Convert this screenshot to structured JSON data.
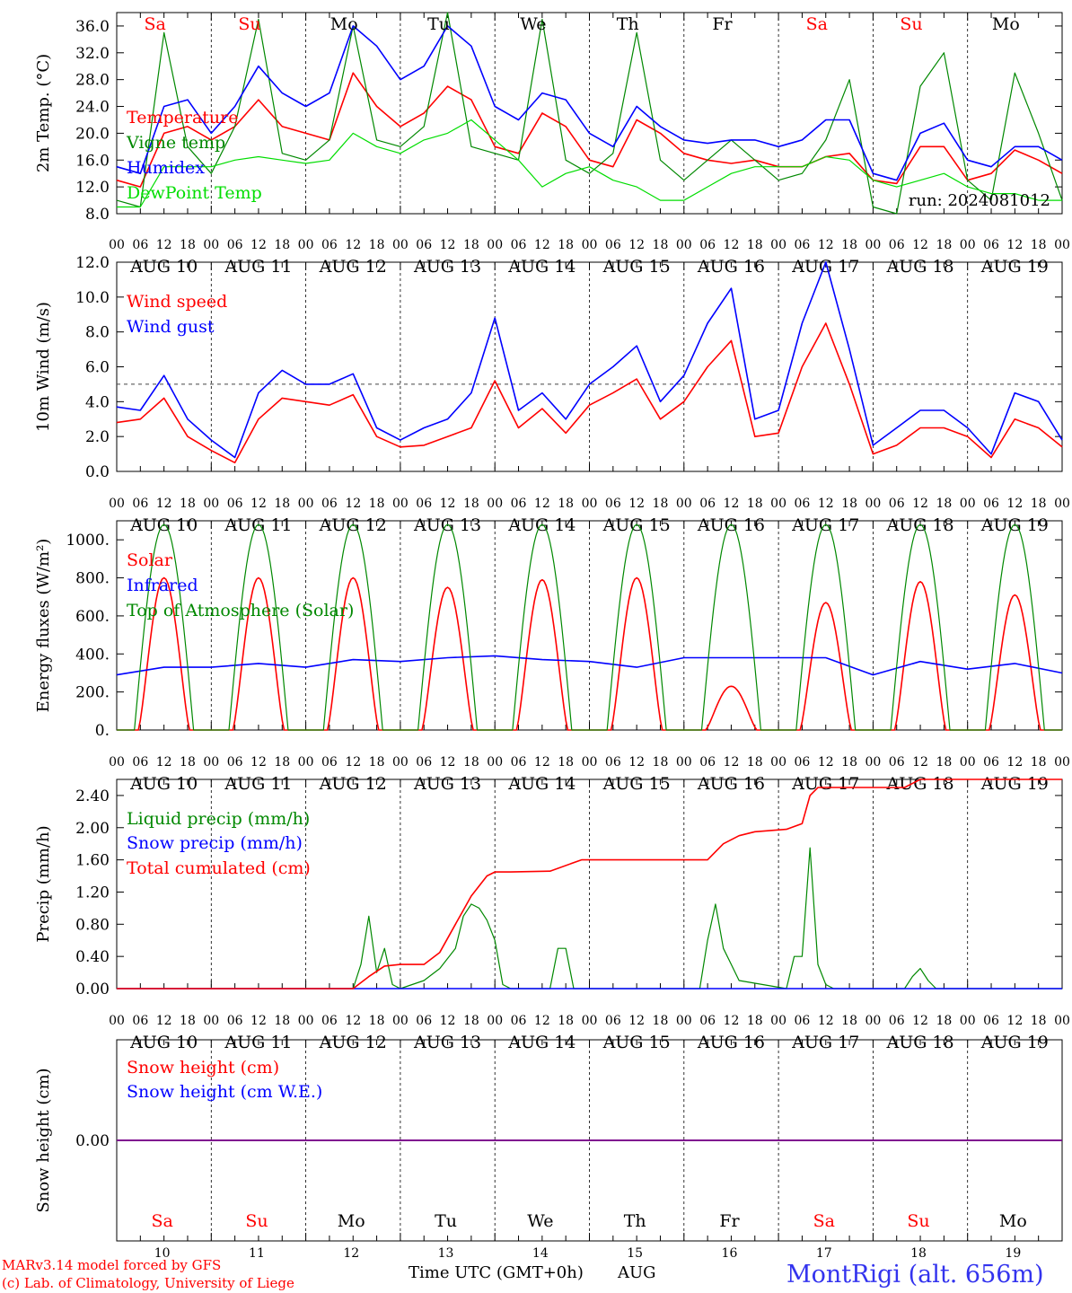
{
  "colors": {
    "red": "#ff0000",
    "blue": "#0000ff",
    "green": "#008800",
    "lightgreen": "#00dd00",
    "purple": "#800080",
    "black": "#000000",
    "station_blue": "#3333ee"
  },
  "days": [
    {
      "abbr": "Sa",
      "date": "AUG 10",
      "num": "10",
      "weekend": true
    },
    {
      "abbr": "Su",
      "date": "AUG 11",
      "num": "11",
      "weekend": true
    },
    {
      "abbr": "Mo",
      "date": "AUG 12",
      "num": "12",
      "weekend": false
    },
    {
      "abbr": "Tu",
      "date": "AUG 13",
      "num": "13",
      "weekend": false
    },
    {
      "abbr": "We",
      "date": "AUG 14",
      "num": "14",
      "weekend": false
    },
    {
      "abbr": "Th",
      "date": "AUG 15",
      "num": "15",
      "weekend": false
    },
    {
      "abbr": "Fr",
      "date": "AUG 16",
      "num": "16",
      "weekend": false
    },
    {
      "abbr": "Sa",
      "date": "AUG 17",
      "num": "17",
      "weekend": true
    },
    {
      "abbr": "Su",
      "date": "AUG 18",
      "num": "18",
      "weekend": true
    },
    {
      "abbr": "Mo",
      "date": "AUG 19",
      "num": "19",
      "weekend": false
    }
  ],
  "hour_labels": [
    "00",
    "06",
    "12",
    "18"
  ],
  "hour_label_end": "00",
  "footer": {
    "model": "MARv3.14 model forced by GFS",
    "copyright": "(c) Lab. of Climatology, University of Liege",
    "xlabel": "Time UTC (GMT+0h)",
    "month": "AUG",
    "station": "MontRigi (alt. 656m)"
  },
  "chart_data": [
    {
      "type": "line",
      "ylabel": "2m Temp. (°C)",
      "ylim": [
        8,
        38
      ],
      "yticks": [
        8,
        12,
        16,
        20,
        24,
        28,
        32,
        36
      ],
      "ytick_decimals": 1,
      "annotation": "run: 2024081012",
      "x_unit": "hours since Aug 10 00 UTC",
      "xlim": [
        0,
        240
      ],
      "series": [
        {
          "name": "Temperature",
          "color": "red",
          "x": [
            0,
            6,
            12,
            18,
            24,
            30,
            36,
            42,
            48,
            54,
            60,
            66,
            72,
            78,
            84,
            90,
            96,
            102,
            108,
            114,
            120,
            126,
            132,
            138,
            144,
            150,
            156,
            162,
            168,
            174,
            180,
            186,
            192,
            198,
            204,
            210,
            216,
            222,
            228,
            234,
            240
          ],
          "values": [
            13,
            12,
            20,
            21,
            19,
            21,
            25,
            21,
            20,
            19,
            29,
            24,
            21,
            23,
            27,
            25,
            18,
            17,
            23,
            21,
            16,
            15,
            22,
            20,
            17,
            16,
            15.5,
            16,
            15,
            15,
            16.5,
            17,
            13,
            12.5,
            18,
            18,
            13,
            14,
            17.5,
            16,
            14
          ]
        },
        {
          "name": "Vigne temp",
          "color": "green",
          "x": [
            0,
            6,
            12,
            18,
            24,
            30,
            36,
            42,
            48,
            54,
            60,
            66,
            72,
            78,
            84,
            90,
            96,
            102,
            108,
            114,
            120,
            126,
            132,
            138,
            144,
            150,
            156,
            162,
            168,
            174,
            180,
            186,
            192,
            198,
            204,
            210,
            216,
            222,
            228,
            234,
            240
          ],
          "values": [
            10,
            9,
            35,
            18,
            14,
            21,
            37,
            17,
            16,
            19,
            36,
            19,
            18,
            21,
            38,
            18,
            17,
            16,
            37,
            16,
            14,
            17,
            35,
            16,
            13,
            16,
            19,
            16,
            13,
            14,
            19,
            28,
            9,
            8,
            27,
            32,
            13,
            10,
            29,
            20,
            10
          ]
        },
        {
          "name": "Humidex",
          "color": "blue",
          "x": [
            0,
            6,
            12,
            18,
            24,
            30,
            36,
            42,
            48,
            54,
            60,
            66,
            72,
            78,
            84,
            90,
            96,
            102,
            108,
            114,
            120,
            126,
            132,
            138,
            144,
            150,
            156,
            162,
            168,
            174,
            180,
            186,
            192,
            198,
            204,
            210,
            216,
            222,
            228,
            234,
            240
          ],
          "values": [
            15,
            14,
            24,
            25,
            20,
            24,
            30,
            26,
            24,
            26,
            36,
            33,
            28,
            30,
            36,
            33,
            24,
            22,
            26,
            25,
            20,
            18,
            24,
            21,
            19,
            18.5,
            19,
            19,
            18,
            19,
            22,
            22,
            14,
            13,
            20,
            21.5,
            16,
            15,
            18,
            18,
            16
          ]
        },
        {
          "name": "DewPoint Temp",
          "color": "lightgreen",
          "x": [
            0,
            6,
            12,
            18,
            24,
            30,
            36,
            42,
            48,
            54,
            60,
            66,
            72,
            78,
            84,
            90,
            96,
            102,
            108,
            114,
            120,
            126,
            132,
            138,
            144,
            150,
            156,
            162,
            168,
            174,
            180,
            186,
            192,
            198,
            204,
            210,
            216,
            222,
            228,
            234,
            240
          ],
          "values": [
            9,
            9,
            15,
            15,
            15,
            16,
            16.5,
            16,
            15.5,
            16,
            20,
            18,
            17,
            19,
            20,
            22,
            19,
            16,
            12,
            14,
            15,
            13,
            12,
            10,
            10,
            12,
            14,
            15,
            15,
            15,
            16.5,
            16,
            13,
            12,
            13,
            14,
            12,
            11,
            11,
            10,
            10
          ]
        }
      ]
    },
    {
      "type": "line",
      "ylabel": "10m Wind (m/s)",
      "ylim": [
        0,
        12
      ],
      "yticks": [
        0,
        2,
        4,
        6,
        8,
        10,
        12
      ],
      "ytick_decimals": 1,
      "reference_line": 5,
      "x_unit": "hours since Aug 10 00 UTC",
      "xlim": [
        0,
        240
      ],
      "series": [
        {
          "name": "Wind speed",
          "color": "red",
          "x": [
            0,
            6,
            12,
            18,
            24,
            30,
            36,
            42,
            48,
            54,
            60,
            66,
            72,
            78,
            84,
            90,
            96,
            102,
            108,
            114,
            120,
            126,
            132,
            138,
            144,
            150,
            156,
            162,
            168,
            174,
            180,
            186,
            192,
            198,
            204,
            210,
            216,
            222,
            228,
            234,
            240
          ],
          "values": [
            2.8,
            3,
            4.2,
            2,
            1.2,
            0.5,
            3,
            4.2,
            4,
            3.8,
            4.4,
            2,
            1.4,
            1.5,
            2,
            2.5,
            5.2,
            2.5,
            3.6,
            2.2,
            3.8,
            4.5,
            5.3,
            3,
            4,
            6,
            7.5,
            2,
            2.2,
            6,
            8.5,
            5,
            1,
            1.5,
            2.5,
            2.5,
            2,
            0.8,
            3,
            2.5,
            1.4
          ]
        },
        {
          "name": "Wind gust",
          "color": "blue",
          "x": [
            0,
            6,
            12,
            18,
            24,
            30,
            36,
            42,
            48,
            54,
            60,
            66,
            72,
            78,
            84,
            90,
            96,
            102,
            108,
            114,
            120,
            126,
            132,
            138,
            144,
            150,
            156,
            162,
            168,
            174,
            180,
            186,
            192,
            198,
            204,
            210,
            216,
            222,
            228,
            234,
            240
          ],
          "values": [
            3.7,
            3.5,
            5.5,
            3,
            1.8,
            0.8,
            4.5,
            5.8,
            5,
            5,
            5.6,
            2.5,
            1.8,
            2.5,
            3,
            4.5,
            8.8,
            3.5,
            4.5,
            3,
            5,
            6,
            7.2,
            4,
            5.5,
            8.5,
            10.5,
            3,
            3.5,
            8.5,
            12,
            7,
            1.5,
            2.5,
            3.5,
            3.5,
            2.5,
            1,
            4.5,
            4,
            1.8
          ]
        }
      ]
    },
    {
      "type": "line",
      "ylabel": "Energy fluxes (W/m²)",
      "ylim": [
        0,
        1100
      ],
      "yticks": [
        0,
        200,
        400,
        600,
        800,
        1000
      ],
      "ytick_decimals": 0,
      "x_unit": "hours since Aug 10 00 UTC",
      "xlim": [
        0,
        240
      ],
      "series": [
        {
          "name": "Solar",
          "color": "red",
          "daily_peaks": [
            800,
            800,
            800,
            750,
            790,
            800,
            230,
            670,
            780,
            710
          ],
          "daylight_hours": [
            4.5,
            19.5
          ]
        },
        {
          "name": "Infrared",
          "color": "blue",
          "x": [
            0,
            12,
            24,
            36,
            48,
            60,
            72,
            84,
            96,
            108,
            120,
            132,
            144,
            156,
            168,
            180,
            192,
            204,
            216,
            228,
            240
          ],
          "values": [
            290,
            330,
            330,
            350,
            330,
            370,
            360,
            380,
            390,
            370,
            360,
            330,
            380,
            380,
            380,
            380,
            290,
            360,
            320,
            350,
            300
          ]
        },
        {
          "name": "Top of Atmosphere (Solar)",
          "color": "green",
          "daily_peak": 1080,
          "daylight_hours": [
            4.5,
            19.5
          ]
        }
      ]
    },
    {
      "type": "line",
      "ylabel": "Precip (mm/h)",
      "ylim": [
        0,
        2.6
      ],
      "yticks": [
        0,
        0.4,
        0.8,
        1.2,
        1.6,
        2.0,
        2.4
      ],
      "ytick_decimals": 2,
      "x_unit": "hours since Aug 10 00 UTC",
      "xlim": [
        0,
        240
      ],
      "series": [
        {
          "name": "Liquid precip (mm/h)",
          "color": "green",
          "x": [
            0,
            60,
            62,
            64,
            66,
            68,
            70,
            72,
            78,
            82,
            86,
            88,
            90,
            92,
            94,
            96,
            98,
            100,
            110,
            112,
            114,
            116,
            118,
            140,
            148,
            150,
            152,
            154,
            156,
            158,
            170,
            172,
            174,
            176,
            178,
            180,
            182,
            200,
            202,
            204,
            206,
            208,
            240
          ],
          "values": [
            0,
            0,
            0.3,
            0.9,
            0.2,
            0.5,
            0.05,
            0,
            0.1,
            0.25,
            0.5,
            0.9,
            1.05,
            1.0,
            0.85,
            0.6,
            0.05,
            0,
            0,
            0.5,
            0.5,
            0,
            0,
            0,
            0,
            0.6,
            1.05,
            0.5,
            0.3,
            0.1,
            0,
            0.4,
            0.4,
            1.75,
            0.3,
            0.05,
            0,
            0,
            0.15,
            0.25,
            0.1,
            0,
            0
          ]
        },
        {
          "name": "Snow precip (mm/h)",
          "color": "blue",
          "x": [
            0,
            240
          ],
          "values": [
            0,
            0
          ]
        },
        {
          "name": "Total cumulated (cm)",
          "color": "red",
          "x": [
            0,
            60,
            64,
            68,
            72,
            78,
            82,
            86,
            90,
            94,
            96,
            100,
            110,
            118,
            150,
            154,
            158,
            162,
            170,
            174,
            176,
            178,
            180,
            200,
            204,
            240
          ],
          "values": [
            0,
            0,
            0.15,
            0.28,
            0.3,
            0.3,
            0.45,
            0.8,
            1.15,
            1.4,
            1.45,
            1.45,
            1.46,
            1.6,
            1.6,
            1.8,
            1.9,
            1.95,
            1.98,
            2.05,
            2.4,
            2.5,
            2.5,
            2.5,
            2.6,
            2.6
          ]
        }
      ]
    },
    {
      "type": "line",
      "ylabel": "Snow height (cm)",
      "ylim": [
        -1,
        1
      ],
      "yticks": [
        0
      ],
      "ytick_decimals": 2,
      "x_unit": "hours since Aug 10 00 UTC",
      "xlim": [
        0,
        240
      ],
      "series": [
        {
          "name": "Snow height (cm)",
          "color": "red",
          "x": [
            0,
            240
          ],
          "values": [
            0,
            0
          ]
        },
        {
          "name": "Snow height (cm W.E.)",
          "color": "blue",
          "x": [
            0,
            240
          ],
          "values": [
            0,
            0
          ]
        }
      ]
    }
  ]
}
